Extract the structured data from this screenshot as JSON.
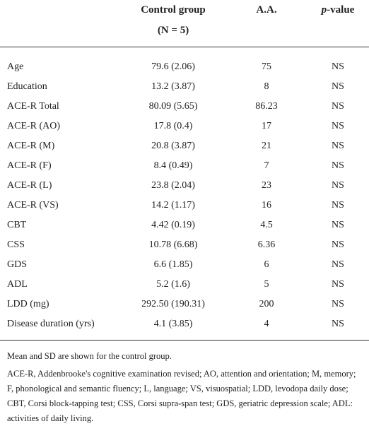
{
  "header": {
    "label": "",
    "control": [
      "Control group",
      "(N = 5)"
    ],
    "aa": "A.A.",
    "p_italic": "p",
    "p_rest": "-value"
  },
  "rows": [
    [
      "Age",
      "79.6 (2.06)",
      "75",
      "NS"
    ],
    [
      "Education",
      "13.2 (3.87)",
      "8",
      "NS"
    ],
    [
      "ACE-R Total",
      "80.09 (5.65)",
      "86.23",
      "NS"
    ],
    [
      "ACE-R (AO)",
      "17.8 (0.4)",
      "17",
      "NS"
    ],
    [
      "ACE-R (M)",
      "20.8 (3.87)",
      "21",
      "NS"
    ],
    [
      "ACE-R (F)",
      "8.4 (0.49)",
      "7",
      "NS"
    ],
    [
      "ACE-R (L)",
      "23.8 (2.04)",
      "23",
      "NS"
    ],
    [
      "ACE-R (VS)",
      "14.2 (1.17)",
      "16",
      "NS"
    ],
    [
      "CBT",
      "4.42 (0.19)",
      "4.5",
      "NS"
    ],
    [
      "CSS",
      "10.78 (6.68)",
      "6.36",
      "NS"
    ],
    [
      "GDS",
      "6.6 (1.85)",
      "6",
      "NS"
    ],
    [
      "ADL",
      "5.2 (1.6)",
      "5",
      "NS"
    ],
    [
      "LDD (mg)",
      "292.50 (190.31)",
      "200",
      "NS"
    ],
    [
      "Disease duration (yrs)",
      "4.1 (3.85)",
      "4",
      "NS"
    ]
  ],
  "notes": [
    "Mean and SD are shown for the control group.",
    "ACE-R, Addenbrooke's cognitive examination revised; AO, attention and orientation; M, memory; F, phonological and semantic fluency; L, language; VS, visuospatial; LDD, levodopa daily dose; CBT, Corsi block-tapping test; CSS, Corsi supra-span test; GDS, geriatric depression scale; ADL: activities of daily living."
  ]
}
